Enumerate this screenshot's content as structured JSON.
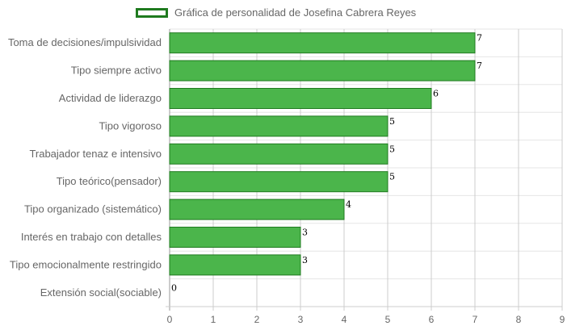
{
  "chart_data": {
    "type": "bar",
    "orientation": "horizontal",
    "legend_position": "top",
    "grid": true,
    "categories": [
      "Toma de decisiones/impulsividad",
      "Tipo siempre activo",
      "Actividad de liderazgo",
      "Tipo vigoroso",
      "Trabajador tenaz e intensivo",
      "Tipo teórico(pensador)",
      "Tipo organizado (sistemático)",
      "Interés en trabajo con detalles",
      "Tipo emocionalmente restringido",
      "Extensión social(sociable)"
    ],
    "series": [
      {
        "name": "Gráfica de personalidad de Josefina Cabrera Reyes",
        "values": [
          7,
          7,
          6,
          5,
          5,
          5,
          4,
          3,
          3,
          0
        ],
        "color": "#4bb54b",
        "border_color": "#1f7a1f"
      }
    ],
    "xlim": [
      0,
      9
    ],
    "xticks": [
      "0",
      "1",
      "2",
      "3",
      "4",
      "5",
      "6",
      "7",
      "8",
      "9"
    ],
    "data_labels": [
      "7",
      "7",
      "6",
      "5",
      "5",
      "5",
      "4",
      "3",
      "3",
      "0"
    ]
  }
}
